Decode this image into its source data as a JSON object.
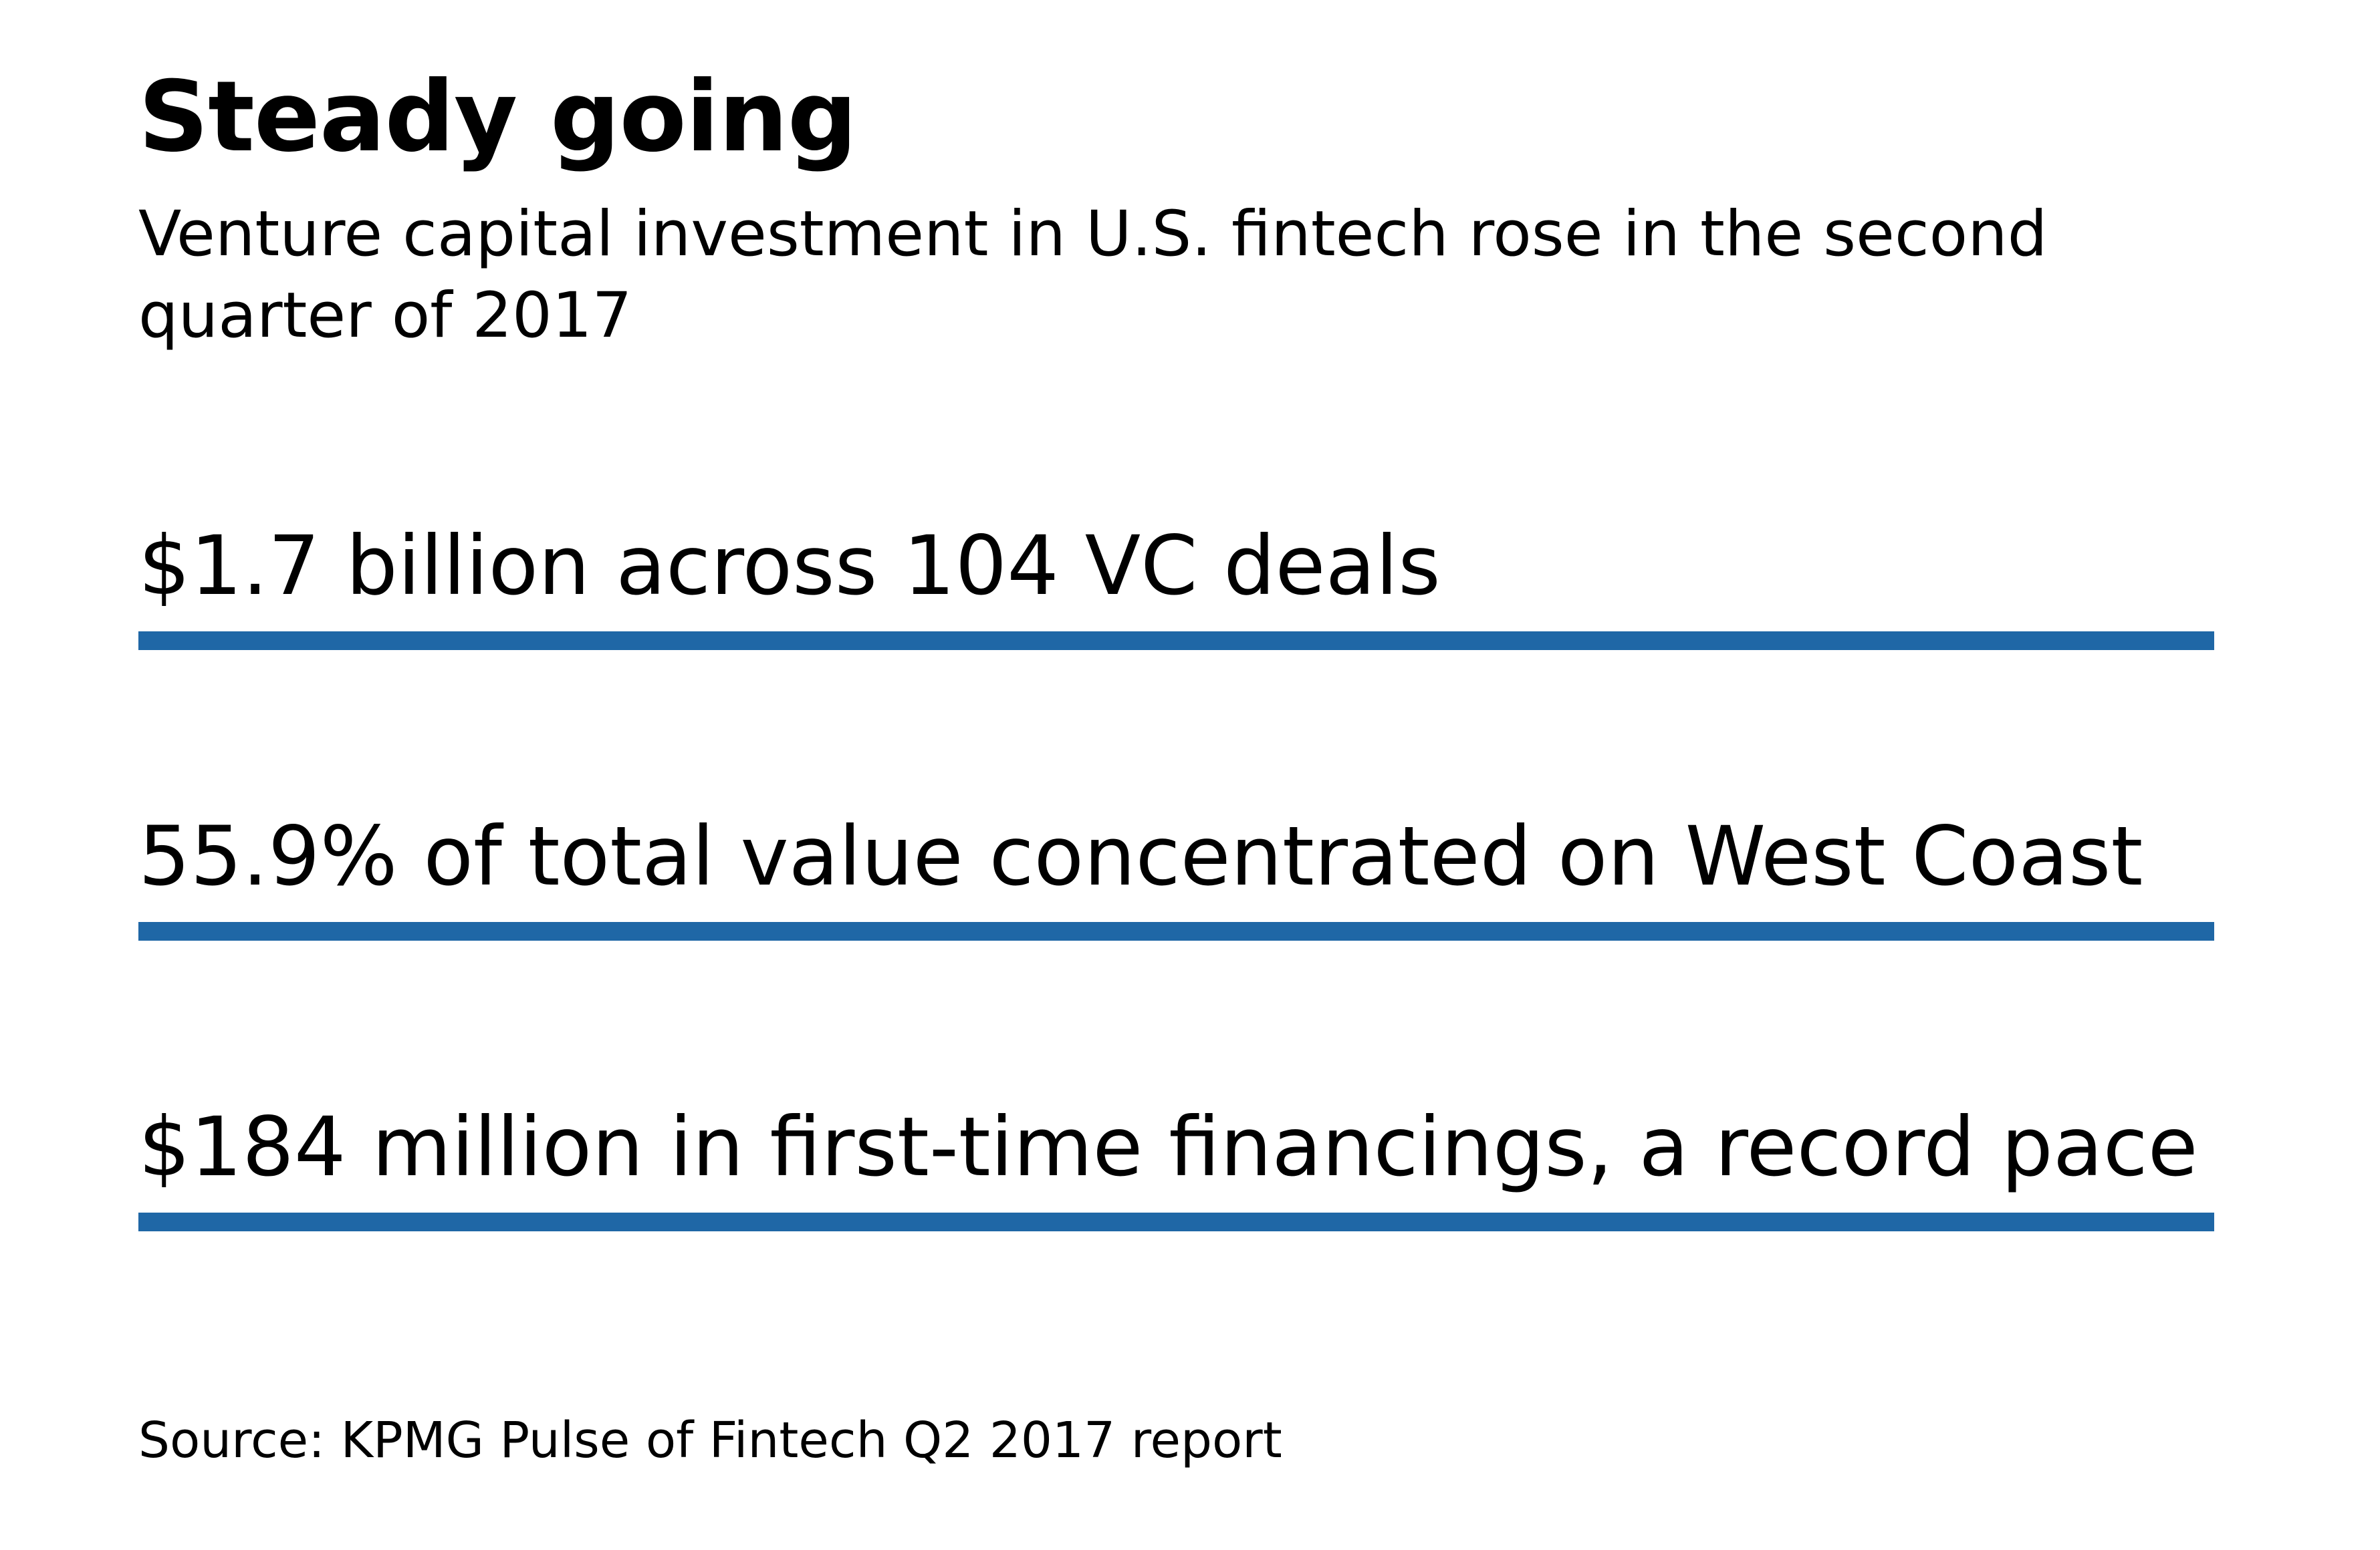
{
  "title": "Steady going",
  "subtitle": "Venture capital investment in U.S. fintech rose in the second quarter of 2017",
  "stats": [
    "$1.7 billion across 104 VC deals",
    "55.9% of total value concentrated on West Coast",
    "$184 million in first-time financings, a record pace"
  ],
  "source": "Source: KPMG Pulse of Fintech Q2 2017 report",
  "colors": {
    "rule": "#1f67a6",
    "text": "#000000",
    "background": "#ffffff"
  }
}
